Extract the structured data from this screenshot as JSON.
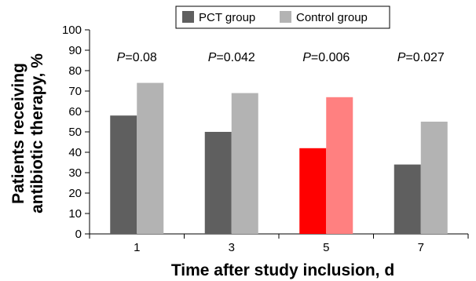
{
  "chart_data": {
    "type": "bar",
    "categories": [
      "1",
      "3",
      "5",
      "7"
    ],
    "series": [
      {
        "name": "PCT group",
        "values": [
          58,
          50,
          42,
          34
        ],
        "color": "#5f5f5f"
      },
      {
        "name": "Control group",
        "values": [
          74,
          69,
          67,
          55
        ],
        "color": "#b3b3b3"
      }
    ],
    "highlight": {
      "category": "5",
      "colors": {
        "PCT group": "#ff0000",
        "Control group": "#ff8080"
      }
    },
    "annotations": [
      {
        "category": "1",
        "prefix": "P",
        "text": "=0.08"
      },
      {
        "category": "3",
        "prefix": "P",
        "text": "=0.042"
      },
      {
        "category": "5",
        "prefix": "P",
        "text": "=0.006"
      },
      {
        "category": "7",
        "prefix": "P",
        "text": "=0.027"
      }
    ],
    "xlabel": "Time after study inclusion, d",
    "ylabel_lines": [
      "Patients receiving",
      "antibiotic therapy, %"
    ],
    "ylim": [
      0,
      100
    ],
    "yticks": [
      0,
      10,
      20,
      30,
      40,
      50,
      60,
      70,
      80,
      90,
      100
    ],
    "grid": false,
    "legend_position": "top-center"
  }
}
